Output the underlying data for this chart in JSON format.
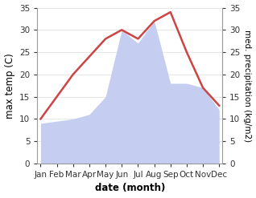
{
  "months": [
    "Jan",
    "Feb",
    "Mar",
    "Apr",
    "May",
    "Jun",
    "Jul",
    "Aug",
    "Sep",
    "Oct",
    "Nov",
    "Dec"
  ],
  "temperature": [
    10,
    15,
    20,
    24,
    28,
    30,
    28,
    32,
    34,
    25,
    17,
    13
  ],
  "precipitation": [
    9,
    9.5,
    10,
    11,
    15,
    30,
    27,
    32,
    18,
    18,
    17,
    12
  ],
  "temp_color": "#cc4444",
  "precip_color": "#c5cef0",
  "ylim": [
    0,
    35
  ],
  "xlabel": "date (month)",
  "ylabel_left": "max temp (C)",
  "ylabel_right": "med. precipitation (kg/m2)",
  "bg_color": "#ffffff",
  "tick_fontsize": 7.5,
  "label_fontsize": 8.5
}
